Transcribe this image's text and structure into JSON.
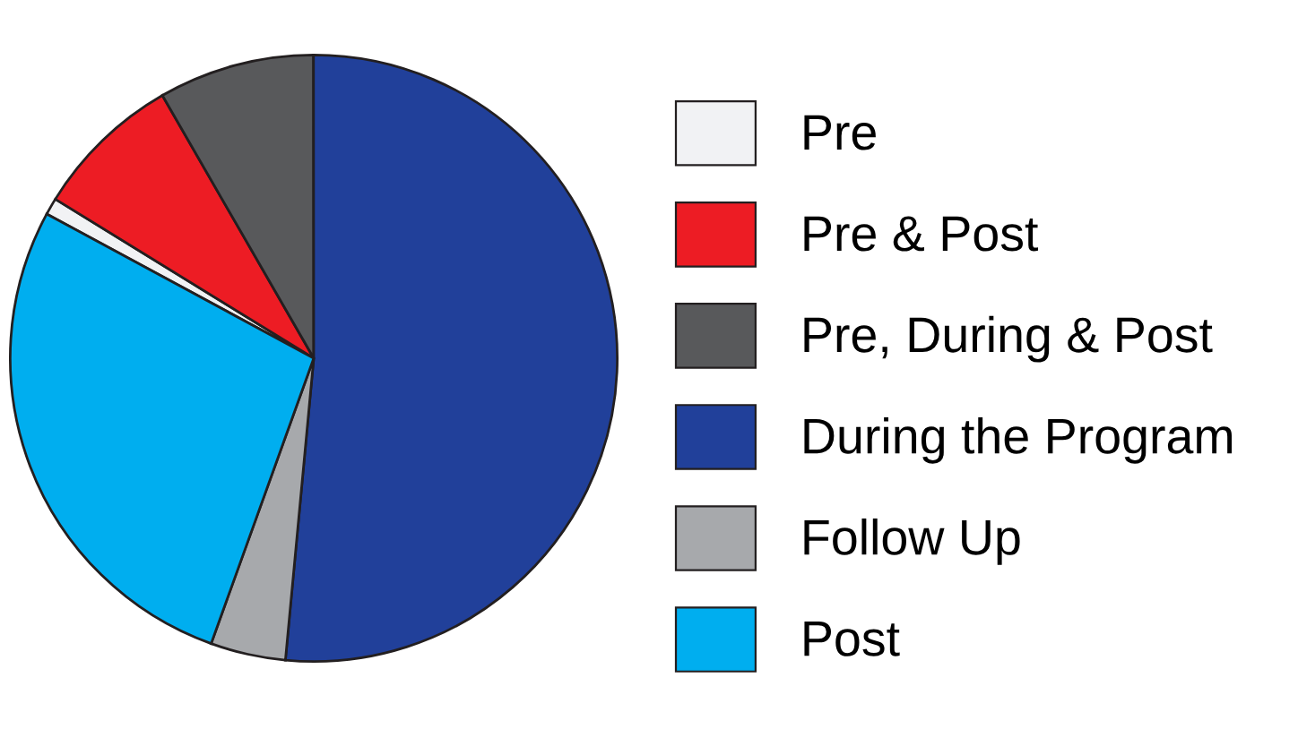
{
  "chart_data": {
    "type": "pie",
    "categories": [
      "Pre",
      "Pre & Post",
      "Pre, During & Post",
      "During the Program",
      "Follow Up",
      "Post"
    ],
    "values": [
      0.9,
      7.9,
      8.3,
      51.5,
      4.0,
      27.4
    ],
    "colors": [
      "#f1f2f4",
      "#ed1c24",
      "#58595b",
      "#21409a",
      "#a7a9ac",
      "#00aeef"
    ],
    "legend": "right"
  }
}
